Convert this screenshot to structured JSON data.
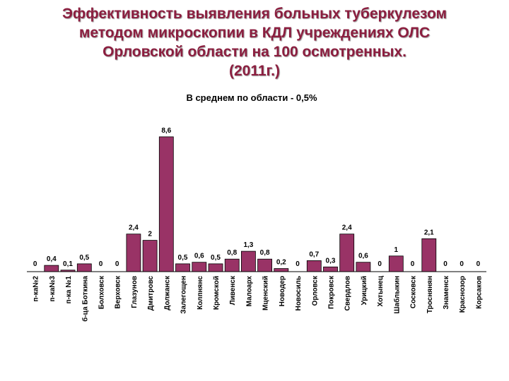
{
  "slide": {
    "title_lines": [
      "Эффективность выявления больных туберкулезом",
      "методом микроскопии в КДЛ учреждениях ОЛС",
      "Орловской области на 100 осмотренных.",
      "(2011г.)"
    ]
  },
  "chart_data": {
    "type": "bar",
    "title": "В среднем по области - 0,5%",
    "xlabel": "",
    "ylabel": "",
    "grid": false,
    "legend": "none",
    "bar_color": "#993366",
    "categories": [
      "п-ка№2",
      "п-ка№3",
      "п-ка №1",
      "б-ца Боткина",
      "Болховск",
      "Верховск",
      "Глазунов",
      "Дмитровс",
      "Должанск",
      "Залегощен",
      "Колпнянс",
      "Кромской",
      "Ливенск",
      "Малоарх",
      "Мценский",
      "Новодер",
      "Новосиль",
      "Орловск",
      "Покровск",
      "Свердлов",
      "Урицкий",
      "Хотынец",
      "Шаблыкин",
      "Сосковск",
      "Троснянян",
      "Знаменск",
      "Краснозор",
      "Корсаков"
    ],
    "values": [
      0,
      0.4,
      0.1,
      0.5,
      0,
      0,
      2.4,
      2,
      8.6,
      0.5,
      0.6,
      0.5,
      0.8,
      1.3,
      0.8,
      0.2,
      0,
      0.7,
      0.3,
      2.4,
      0.6,
      0,
      1,
      0,
      2.1,
      0,
      0,
      0
    ],
    "value_labels": [
      "0",
      "0,4",
      "0,1",
      "0,5",
      "0",
      "0",
      "2,4",
      "2",
      "8,6",
      "0,5",
      "0,6",
      "0,5",
      "0,8",
      "1,3",
      "0,8",
      "0,2",
      "0",
      "0,7",
      "0,3",
      "2,4",
      "0,6",
      "0",
      "1",
      "0",
      "2,1",
      "0",
      "0",
      "0"
    ],
    "ylim": [
      0,
      9
    ]
  }
}
